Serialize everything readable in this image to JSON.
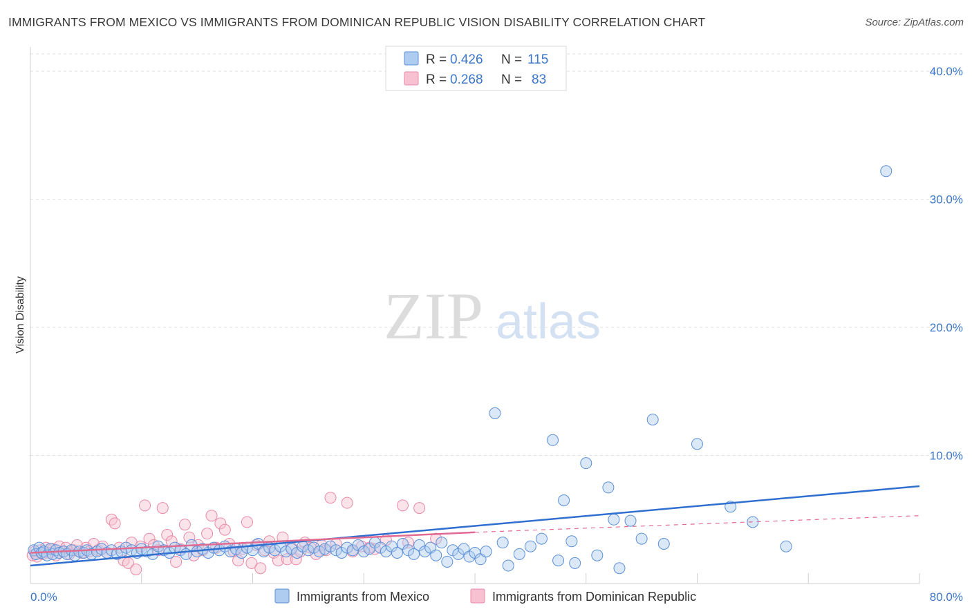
{
  "title": "IMMIGRANTS FROM MEXICO VS IMMIGRANTS FROM DOMINICAN REPUBLIC VISION DISABILITY CORRELATION CHART",
  "source": "Source: ZipAtlas.com",
  "watermark": {
    "zip": "ZIP",
    "atlas": "atlas"
  },
  "colors": {
    "blue": "#5b8fd6",
    "blue_fill": "#aecbf0",
    "blue_line": "#2f6fd0",
    "pink": "#e889a8",
    "pink_fill": "#f7c1d1",
    "pink_line": "#e06a90",
    "tick_text": "#3b76c9"
  },
  "legend": {
    "r_label": "R =",
    "n_label": "N =",
    "rows": [
      {
        "r": "0.426",
        "n": "115"
      },
      {
        "r": "0.268",
        "n": "83"
      }
    ]
  },
  "bottom_legend": [
    "Immigrants from Mexico",
    "Immigrants from Dominican Republic"
  ],
  "chart_data": {
    "type": "scatter",
    "title": "IMMIGRANTS FROM MEXICO VS IMMIGRANTS FROM DOMINICAN REPUBLIC VISION DISABILITY CORRELATION CHART",
    "xlabel": "",
    "ylabel": "Vision Disability",
    "xlim": [
      0,
      80
    ],
    "ylim": [
      0,
      42
    ],
    "x_tick_labels": [
      "0.0%",
      "80.0%"
    ],
    "y_ticks": [
      10,
      20,
      30,
      40
    ],
    "y_tick_labels": [
      "10.0%",
      "20.0%",
      "30.0%",
      "40.0%"
    ],
    "grid": true,
    "series": [
      {
        "name": "Immigrants from Mexico",
        "R": 0.426,
        "N": 115,
        "trend": {
          "x": [
            0,
            80
          ],
          "y": [
            1.4,
            7.6
          ]
        },
        "points": [
          [
            0.3,
            2.6
          ],
          [
            0.5,
            2.3
          ],
          [
            0.8,
            2.8
          ],
          [
            1.0,
            2.4
          ],
          [
            1.2,
            2.5
          ],
          [
            1.5,
            2.2
          ],
          [
            1.8,
            2.7
          ],
          [
            2.0,
            2.3
          ],
          [
            2.3,
            2.6
          ],
          [
            2.6,
            2.4
          ],
          [
            3.0,
            2.5
          ],
          [
            3.3,
            2.3
          ],
          [
            3.7,
            2.6
          ],
          [
            4.0,
            2.2
          ],
          [
            4.4,
            2.5
          ],
          [
            4.8,
            2.4
          ],
          [
            5.1,
            2.6
          ],
          [
            5.5,
            2.3
          ],
          [
            6.0,
            2.5
          ],
          [
            6.4,
            2.7
          ],
          [
            6.9,
            2.4
          ],
          [
            7.3,
            2.6
          ],
          [
            7.8,
            2.3
          ],
          [
            8.2,
            2.5
          ],
          [
            8.6,
            2.8
          ],
          [
            9.1,
            2.6
          ],
          [
            9.6,
            2.4
          ],
          [
            10.0,
            2.7
          ],
          [
            10.5,
            2.5
          ],
          [
            11.0,
            2.3
          ],
          [
            11.5,
            2.9
          ],
          [
            12.0,
            2.6
          ],
          [
            12.5,
            2.4
          ],
          [
            13.0,
            2.8
          ],
          [
            13.5,
            2.6
          ],
          [
            14.0,
            2.3
          ],
          [
            14.5,
            3.0
          ],
          [
            15.0,
            2.5
          ],
          [
            15.5,
            2.7
          ],
          [
            16.0,
            2.4
          ],
          [
            16.5,
            2.8
          ],
          [
            17.0,
            2.6
          ],
          [
            17.5,
            2.9
          ],
          [
            18.0,
            2.5
          ],
          [
            18.5,
            2.7
          ],
          [
            19.0,
            2.4
          ],
          [
            19.5,
            2.8
          ],
          [
            20.0,
            2.6
          ],
          [
            20.5,
            3.1
          ],
          [
            21.0,
            2.5
          ],
          [
            21.5,
            2.8
          ],
          [
            22.0,
            2.6
          ],
          [
            22.5,
            2.9
          ],
          [
            23.0,
            2.5
          ],
          [
            23.5,
            2.7
          ],
          [
            24.0,
            2.4
          ],
          [
            24.5,
            2.9
          ],
          [
            25.0,
            2.6
          ],
          [
            25.5,
            2.8
          ],
          [
            26.0,
            2.5
          ],
          [
            26.5,
            2.7
          ],
          [
            27.0,
            2.9
          ],
          [
            27.5,
            2.6
          ],
          [
            28.0,
            2.4
          ],
          [
            28.5,
            2.8
          ],
          [
            29.0,
            2.6
          ],
          [
            29.5,
            3.0
          ],
          [
            30.0,
            2.5
          ],
          [
            30.5,
            2.7
          ],
          [
            31.0,
            3.2
          ],
          [
            31.5,
            2.8
          ],
          [
            32.0,
            2.5
          ],
          [
            32.5,
            2.9
          ],
          [
            33.0,
            2.4
          ],
          [
            33.5,
            3.1
          ],
          [
            34.0,
            2.6
          ],
          [
            34.5,
            2.3
          ],
          [
            35.0,
            3.0
          ],
          [
            35.5,
            2.5
          ],
          [
            36.0,
            2.8
          ],
          [
            36.5,
            2.2
          ],
          [
            37.0,
            3.2
          ],
          [
            37.5,
            1.7
          ],
          [
            38.0,
            2.6
          ],
          [
            38.5,
            2.3
          ],
          [
            39.0,
            2.7
          ],
          [
            39.5,
            2.1
          ],
          [
            40.0,
            2.4
          ],
          [
            40.5,
            1.9
          ],
          [
            41.0,
            2.5
          ],
          [
            41.8,
            13.3
          ],
          [
            42.5,
            3.2
          ],
          [
            43.0,
            1.4
          ],
          [
            44.0,
            2.3
          ],
          [
            45.0,
            2.9
          ],
          [
            46.0,
            3.5
          ],
          [
            47.0,
            11.2
          ],
          [
            47.5,
            1.8
          ],
          [
            48.0,
            6.5
          ],
          [
            49.0,
            1.6
          ],
          [
            50.0,
            9.4
          ],
          [
            51.0,
            2.2
          ],
          [
            52.0,
            7.5
          ],
          [
            53.0,
            1.2
          ],
          [
            54.0,
            4.9
          ],
          [
            55.0,
            3.5
          ],
          [
            56.0,
            12.8
          ],
          [
            57.0,
            3.1
          ],
          [
            60.0,
            10.9
          ],
          [
            63.0,
            6.0
          ],
          [
            65.0,
            4.8
          ],
          [
            68.0,
            2.9
          ],
          [
            77.0,
            32.2
          ],
          [
            48.7,
            3.3
          ],
          [
            52.5,
            5.0
          ]
        ]
      },
      {
        "name": "Immigrants from Dominican Republic",
        "R": 0.268,
        "N": 83,
        "trend": {
          "x": [
            0,
            40
          ],
          "y": [
            2.4,
            4.0
          ]
        },
        "trend_extension": {
          "x": [
            40,
            80
          ],
          "y": [
            4.0,
            5.3
          ]
        },
        "points": [
          [
            0.2,
            2.2
          ],
          [
            0.4,
            2.5
          ],
          [
            0.6,
            2.1
          ],
          [
            0.9,
            2.6
          ],
          [
            1.1,
            2.3
          ],
          [
            1.4,
            2.8
          ],
          [
            1.7,
            2.4
          ],
          [
            2.0,
            2.7
          ],
          [
            2.3,
            2.2
          ],
          [
            2.6,
            2.9
          ],
          [
            2.9,
            2.5
          ],
          [
            3.2,
            2.8
          ],
          [
            3.5,
            2.3
          ],
          [
            3.9,
            2.6
          ],
          [
            4.2,
            3.0
          ],
          [
            4.6,
            2.4
          ],
          [
            5.0,
            2.8
          ],
          [
            5.3,
            2.5
          ],
          [
            5.7,
            3.1
          ],
          [
            6.1,
            2.6
          ],
          [
            6.5,
            2.9
          ],
          [
            6.9,
            2.4
          ],
          [
            7.3,
            5.0
          ],
          [
            7.6,
            4.7
          ],
          [
            8.0,
            2.8
          ],
          [
            8.4,
            1.8
          ],
          [
            8.8,
            1.6
          ],
          [
            9.1,
            3.2
          ],
          [
            9.5,
            1.1
          ],
          [
            9.9,
            2.9
          ],
          [
            10.3,
            6.1
          ],
          [
            10.7,
            3.5
          ],
          [
            11.1,
            3.0
          ],
          [
            11.5,
            2.6
          ],
          [
            11.9,
            5.9
          ],
          [
            12.3,
            3.8
          ],
          [
            12.7,
            3.3
          ],
          [
            13.1,
            1.7
          ],
          [
            13.5,
            2.7
          ],
          [
            13.9,
            4.6
          ],
          [
            14.3,
            3.6
          ],
          [
            14.7,
            2.2
          ],
          [
            15.1,
            3.0
          ],
          [
            15.5,
            2.6
          ],
          [
            15.9,
            3.9
          ],
          [
            16.3,
            5.3
          ],
          [
            16.7,
            2.8
          ],
          [
            17.1,
            4.7
          ],
          [
            17.5,
            4.2
          ],
          [
            17.9,
            3.1
          ],
          [
            18.3,
            2.5
          ],
          [
            18.7,
            1.8
          ],
          [
            19.1,
            2.7
          ],
          [
            19.5,
            4.8
          ],
          [
            19.9,
            1.6
          ],
          [
            20.3,
            3.0
          ],
          [
            20.7,
            1.2
          ],
          [
            21.1,
            2.6
          ],
          [
            21.5,
            3.3
          ],
          [
            21.9,
            2.4
          ],
          [
            22.3,
            1.8
          ],
          [
            22.7,
            3.6
          ],
          [
            23.1,
            1.9
          ],
          [
            23.5,
            2.8
          ],
          [
            23.9,
            1.9
          ],
          [
            24.3,
            2.5
          ],
          [
            24.7,
            3.2
          ],
          [
            25.2,
            2.8
          ],
          [
            25.7,
            2.3
          ],
          [
            26.2,
            3.0
          ],
          [
            27.0,
            6.7
          ],
          [
            27.5,
            3.1
          ],
          [
            28.5,
            6.3
          ],
          [
            29.0,
            2.5
          ],
          [
            29.8,
            2.9
          ],
          [
            31.0,
            2.7
          ],
          [
            32.0,
            3.4
          ],
          [
            33.5,
            6.1
          ],
          [
            34.0,
            3.2
          ],
          [
            35.0,
            5.9
          ],
          [
            36.5,
            3.5
          ],
          [
            26.6,
            2.6
          ],
          [
            30.5,
            2.8
          ]
        ]
      }
    ]
  }
}
